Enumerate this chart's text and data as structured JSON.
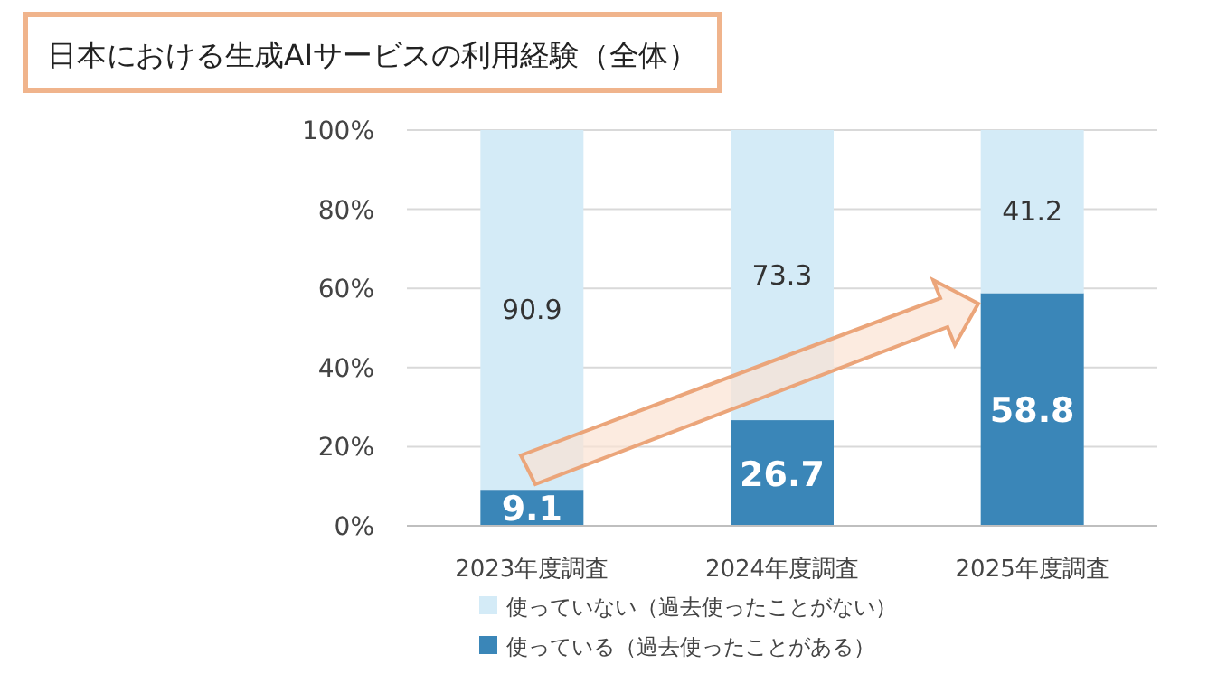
{
  "chart_data": {
    "type": "bar",
    "stacked": true,
    "title": "日本における生成AIサービスの利用経験（全体）",
    "categories": [
      "2023年度調査",
      "2024年度調査",
      "2025年度調査"
    ],
    "series": [
      {
        "name": "使っている（過去使ったことがある）",
        "color": "#3a86b8",
        "values": [
          9.1,
          26.7,
          58.8
        ]
      },
      {
        "name": "使っていない（過去使ったことがない）",
        "color": "#d4ebf7",
        "values": [
          90.9,
          73.3,
          41.2
        ]
      }
    ],
    "ylim": [
      0,
      100
    ],
    "yticks": [
      {
        "value": 0,
        "label": "0%"
      },
      {
        "value": 20,
        "label": "20%"
      },
      {
        "value": 40,
        "label": "40%"
      },
      {
        "value": 60,
        "label": "60%"
      },
      {
        "value": 80,
        "label": "80%"
      },
      {
        "value": 100,
        "label": "100%"
      }
    ],
    "grid": "y",
    "legend": "bottom",
    "data_labels": true
  }
}
